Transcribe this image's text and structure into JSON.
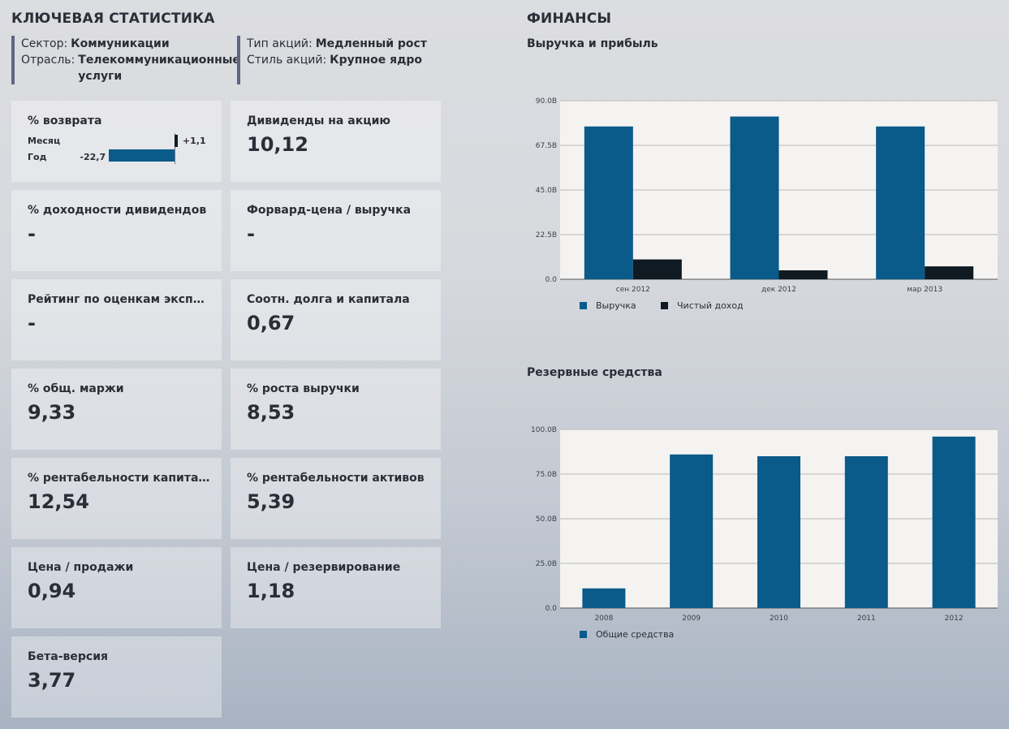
{
  "left": {
    "title": "КЛЮЧЕВАЯ СТАТИСТИКА",
    "meta1": [
      {
        "key": "Сектор:",
        "value": "Коммуникации"
      },
      {
        "key": "Отрасль:",
        "value": "Телекоммуникационные услуги"
      }
    ],
    "meta2": [
      {
        "key": "Тип акций:",
        "value": "Медленный рост"
      },
      {
        "key": "Стиль акций:",
        "value": "Крупное ядро"
      }
    ],
    "returns": {
      "label": "% возврата",
      "month_label": "Месяц",
      "month_value": "+1,1",
      "month_number": 1.1,
      "year_label": "Год",
      "year_value": "-22,7",
      "year_number": -22.7,
      "pos_color": "#0f1a22",
      "neg_color": "#0a5a8a"
    },
    "tiles": [
      {
        "label": "Дивиденды на акцию",
        "value": "10,12"
      },
      {
        "label": "% доходности дивидендов",
        "value": "-"
      },
      {
        "label": "Форвард-цена / выручка",
        "value": "-"
      },
      {
        "label": "Рейтинг по оценкам эксперт...",
        "value": "-"
      },
      {
        "label": "Соотн. долга и капитала",
        "value": "0,67"
      },
      {
        "label": "% общ. маржи",
        "value": "9,33"
      },
      {
        "label": "% роста выручки",
        "value": "8,53"
      },
      {
        "label": "% рентабельности капитала",
        "value": "12,54"
      },
      {
        "label": "% рентабельности активов",
        "value": "5,39"
      },
      {
        "label": "Цена / продажи",
        "value": "0,94"
      },
      {
        "label": "Цена / резервирование",
        "value": "1,18"
      },
      {
        "label": "Бета-версия",
        "value": "3,77"
      }
    ]
  },
  "right": {
    "title": "ФИНАНСЫ"
  },
  "chart_data": [
    {
      "type": "bar",
      "title": "Выручка и прибыль",
      "categories": [
        "сен 2012",
        "дек 2012",
        "мар 2013"
      ],
      "series": [
        {
          "name": "Выручка",
          "values": [
            77,
            82,
            77
          ],
          "color": "#0a5a8a"
        },
        {
          "name": "Чистый доход",
          "values": [
            10,
            4.5,
            6.5
          ],
          "color": "#0f1a22"
        }
      ],
      "ylim": [
        0,
        90
      ],
      "ticks": [
        0,
        22.5,
        45,
        67.5,
        90
      ],
      "tick_labels": [
        "0.0",
        "22.5B",
        "45.0B",
        "67.5B",
        "90.0B"
      ],
      "legend_position": "bottom-left"
    },
    {
      "type": "bar",
      "title": "Резервные средства",
      "categories": [
        "2008",
        "2009",
        "2010",
        "2011",
        "2012"
      ],
      "series": [
        {
          "name": "Общие средства",
          "values": [
            11,
            86,
            85,
            85,
            96
          ],
          "color": "#0a5a8a"
        }
      ],
      "ylim": [
        0,
        100
      ],
      "ticks": [
        0,
        25,
        50,
        75,
        100
      ],
      "tick_labels": [
        "0.0",
        "25.0B",
        "50.0B",
        "75.0B",
        "100.0B"
      ],
      "legend_position": "bottom-left"
    }
  ]
}
